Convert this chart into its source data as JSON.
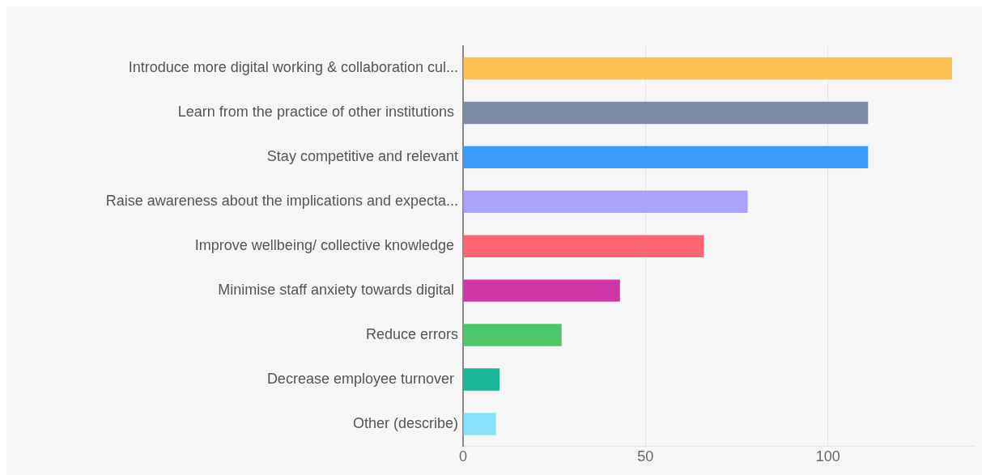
{
  "chart_data": {
    "type": "bar",
    "orientation": "horizontal",
    "categories": [
      "Introduce more digital working & collaboration cul...",
      "Learn from the practice of other institutions ",
      "Stay competitive and relevant",
      "Raise awareness about the implications and expecta...",
      "Improve wellbeing/ collective knowledge ",
      "Minimise staff anxiety towards digital ",
      "Reduce errors",
      "Decrease employee turnover ",
      "Other (describe)"
    ],
    "values": [
      134,
      111,
      111,
      78,
      66,
      43,
      27,
      10,
      9
    ],
    "colors": [
      "#ffc152",
      "#7d8ba4",
      "#3a9cfa",
      "#aba2fc",
      "#ff6670",
      "#cf37a6",
      "#4dc56b",
      "#1db597",
      "#88e1fa"
    ],
    "xlim": [
      0,
      140
    ],
    "xticks": [
      0,
      50,
      100
    ],
    "grid": "x",
    "legend": false
  }
}
